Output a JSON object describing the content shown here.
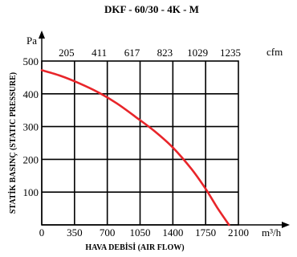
{
  "chart_data": {
    "type": "line",
    "title": "DKF - 60/30 - 4K - M",
    "xlabel": "HAVA DEBİSİ (AIR FLOW)",
    "ylabel": "STATİK BASINÇ (STATIC PRESSURE)",
    "x_unit": "m³/h",
    "y_unit": "Pa",
    "x2_unit": "cfm",
    "xlim": [
      0,
      2100
    ],
    "ylim": [
      0,
      500
    ],
    "x_ticks": [
      "0",
      "350",
      "700",
      "1050",
      "1400",
      "1750",
      "2100"
    ],
    "x_tick_values": [
      0,
      350,
      700,
      1050,
      1400,
      1750,
      2100
    ],
    "y_ticks": [
      "100",
      "200",
      "300",
      "400",
      "500"
    ],
    "y_tick_values": [
      100,
      200,
      300,
      400,
      500
    ],
    "x2_ticks": [
      "205",
      "411",
      "617",
      "823",
      "1029",
      "1235"
    ],
    "x2_tick_values": [
      350,
      700,
      1050,
      1400,
      1750,
      2100
    ],
    "grid": true,
    "series": [
      {
        "color": "#e8252a",
        "x": [
          0,
          200,
          400,
          600,
          800,
          1000,
          1200,
          1400,
          1600,
          1750,
          1880,
          2000
        ],
        "y": [
          472,
          455,
          432,
          405,
          371,
          330,
          287,
          236,
          170,
          110,
          50,
          0
        ]
      }
    ]
  }
}
